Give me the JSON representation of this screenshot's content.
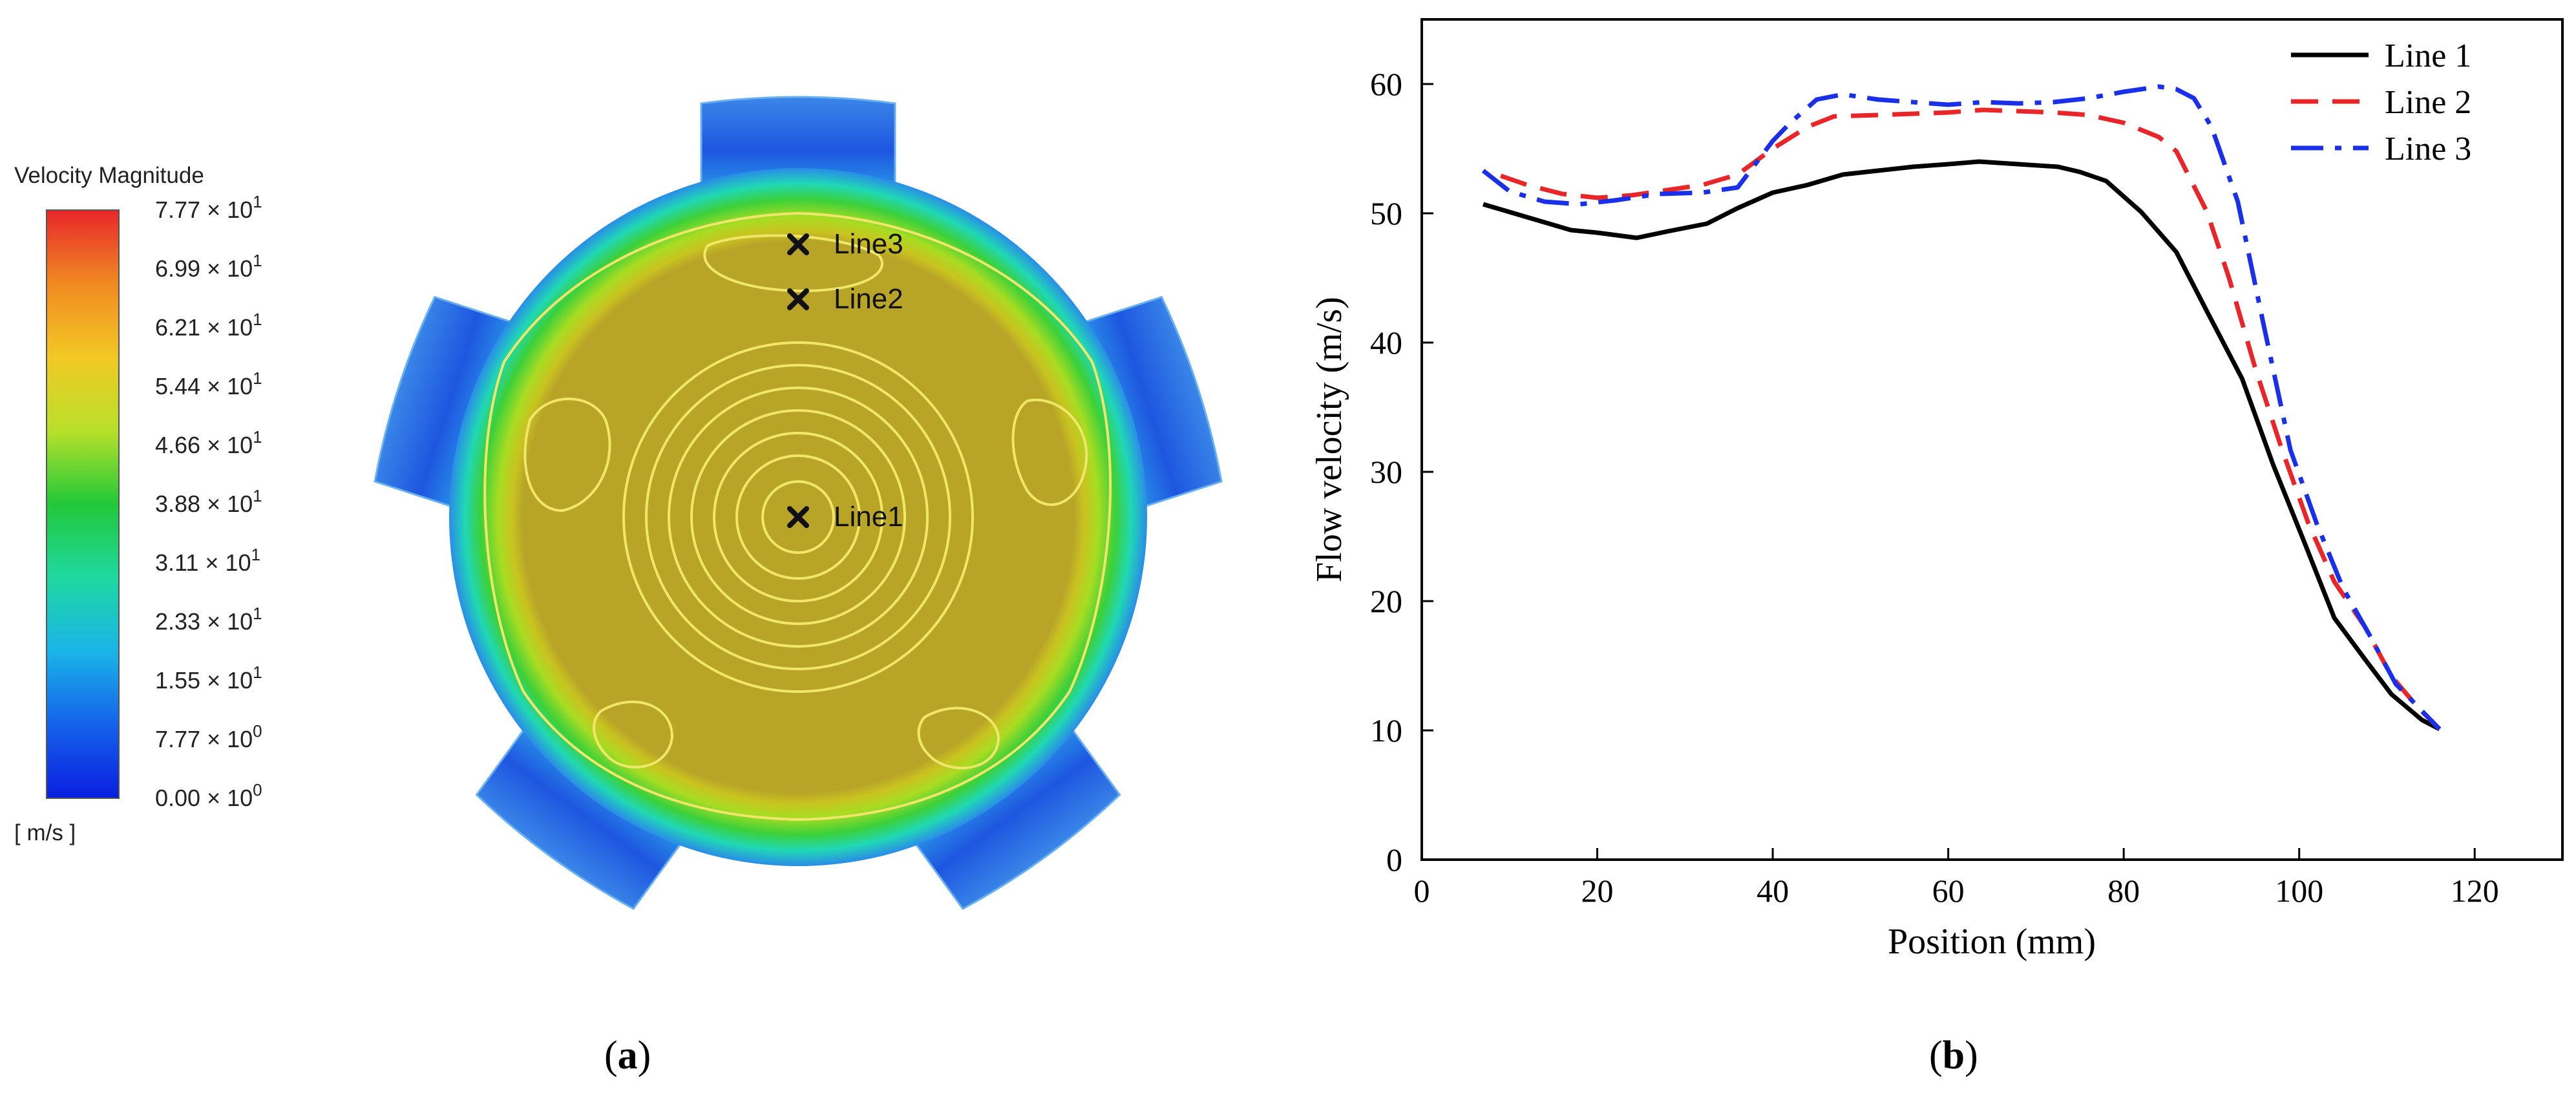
{
  "panel_a": {
    "legend_title": "Velocity Magnitude",
    "unit": "[ m/s ]",
    "legend_ticks": [
      {
        "mant": "7.77",
        "exp": "1"
      },
      {
        "mant": "6.99",
        "exp": "1"
      },
      {
        "mant": "6.21",
        "exp": "1"
      },
      {
        "mant": "5.44",
        "exp": "1"
      },
      {
        "mant": "4.66",
        "exp": "1"
      },
      {
        "mant": "3.88",
        "exp": "1"
      },
      {
        "mant": "3.11",
        "exp": "1"
      },
      {
        "mant": "2.33",
        "exp": "1"
      },
      {
        "mant": "1.55",
        "exp": "1"
      },
      {
        "mant": "7.77",
        "exp": "0"
      },
      {
        "mant": "0.00",
        "exp": "0"
      }
    ],
    "times_sign": "×",
    "power_base": "10",
    "marker_labels": [
      "Line3",
      "Line2",
      "Line1"
    ],
    "caption_letter": "a",
    "colors": {
      "max": "#e8262a",
      "high": "#f5a524",
      "mid_high": "#c9d81e",
      "mid": "#22c83a",
      "mid_low": "#1fc8d8",
      "low": "#2a6fe8",
      "min": "#0a1ee0",
      "core": "#b8a528",
      "contour": "#efe66a"
    }
  },
  "chart_data": {
    "type": "line",
    "title": "",
    "xlabel": "Position (mm)",
    "ylabel": "Flow velocity (m/s)",
    "xlim": [
      0,
      130
    ],
    "ylim": [
      0,
      65
    ],
    "xticks": [
      0,
      20,
      40,
      60,
      80,
      100,
      120
    ],
    "yticks": [
      0,
      10,
      20,
      30,
      40,
      50,
      60
    ],
    "grid": false,
    "legend_position": "top-right",
    "caption_letter": "b",
    "series": [
      {
        "name": "Line 1",
        "color": "#000000",
        "dash": "solid",
        "x": [
          7,
          12,
          17,
          20,
          24.5,
          28,
          32.5,
          36,
          40,
          44,
          48,
          52,
          56,
          60,
          63.5,
          68,
          72.5,
          75,
          78,
          82,
          86,
          89.5,
          93.5,
          97,
          100.5,
          104,
          107.5,
          110.5,
          114,
          116
        ],
        "y": [
          50.7,
          49.7,
          48.7,
          48.5,
          48.1,
          48.6,
          49.2,
          50.4,
          51.6,
          52.2,
          53.0,
          53.3,
          53.6,
          53.8,
          54.0,
          53.8,
          53.6,
          53.2,
          52.5,
          50.1,
          47.0,
          42.4,
          37.2,
          30.6,
          24.7,
          18.7,
          15.5,
          12.8,
          10.8,
          10.1
        ]
      },
      {
        "name": "Line 2",
        "color": "#e8262a",
        "dash": "dashed",
        "x": [
          9,
          12,
          16,
          20,
          24,
          28,
          32,
          36,
          40,
          44,
          47,
          52,
          56,
          60,
          64,
          68,
          72,
          76,
          80,
          84,
          86,
          89.5,
          92,
          95,
          98,
          101,
          104,
          107.5,
          110.5,
          113.5,
          116
        ],
        "y": [
          52.9,
          52.2,
          51.5,
          51.2,
          51.4,
          51.8,
          52.2,
          53.0,
          55.0,
          56.7,
          57.5,
          57.6,
          57.7,
          57.8,
          58.0,
          57.9,
          57.8,
          57.6,
          57.0,
          55.9,
          54.8,
          50.1,
          45.0,
          38.0,
          31.8,
          26.1,
          21.5,
          18.0,
          14.2,
          11.8,
          10.1
        ]
      },
      {
        "name": "Line 3",
        "color": "#1a2fe8",
        "dash": "dashdot",
        "x": [
          7,
          10,
          14,
          18,
          22,
          27,
          32,
          36,
          40,
          42,
          45,
          48,
          52,
          56,
          60,
          64,
          68,
          72,
          76,
          80,
          84,
          86,
          88,
          90,
          93,
          96,
          99,
          102,
          105,
          108,
          111,
          114,
          116
        ],
        "y": [
          53.3,
          51.7,
          50.9,
          50.7,
          51.0,
          51.5,
          51.6,
          52.0,
          55.6,
          57.0,
          58.8,
          59.2,
          58.8,
          58.6,
          58.4,
          58.6,
          58.5,
          58.6,
          58.9,
          59.4,
          59.8,
          59.6,
          58.9,
          56.7,
          50.9,
          41.2,
          31.7,
          26.0,
          21.0,
          17.4,
          13.6,
          11.5,
          10.1
        ]
      }
    ]
  }
}
